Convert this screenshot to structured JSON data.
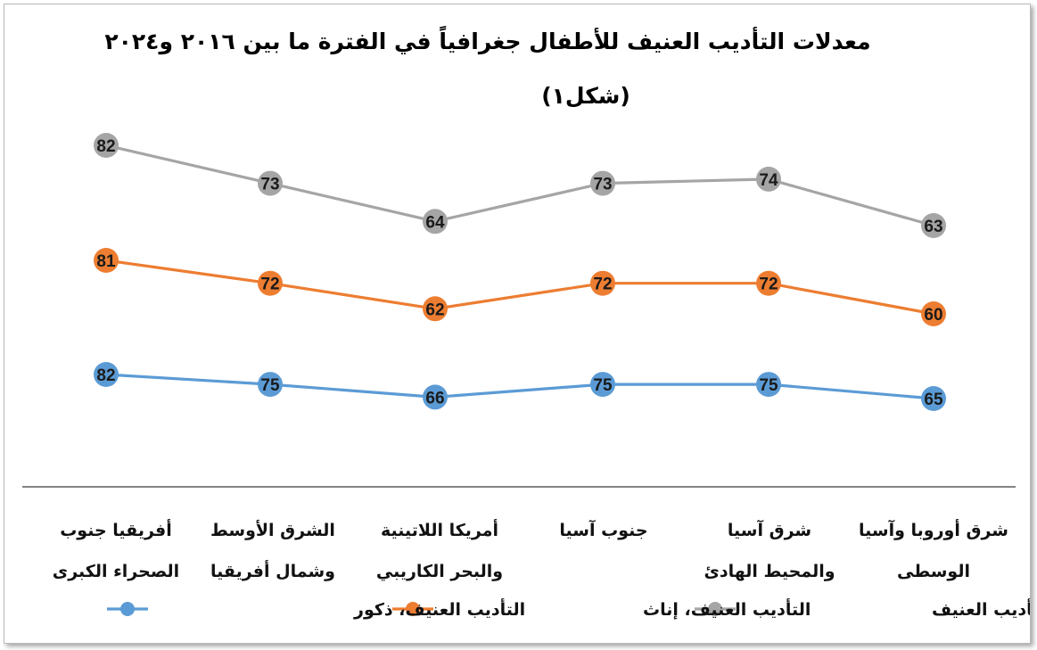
{
  "chart_data": {
    "type": "line",
    "title": "معدلات التأديب العنيف للأطفال جغرافياً في الفترة ما بين ٢٠١٦ و٢٠٢٤",
    "subtitle": "(شكل١)",
    "xlabel": "",
    "ylabel": "",
    "grid": false,
    "legend_position": "bottom",
    "categories": [
      [
        "أفريقيا جنوب",
        "الصحراء الكبرى"
      ],
      [
        "الشرق الأوسط",
        "وشمال أفريقيا"
      ],
      [
        "أمريكا اللاتينية",
        "والبحر الكاريبي"
      ],
      [
        "جنوب آسيا"
      ],
      [
        "شرق آسيا",
        "والمحيط الهادئ"
      ],
      [
        "شرق أوروبا وآسيا",
        "الوسطى"
      ]
    ],
    "ylim": [
      55,
      90
    ],
    "series": [
      {
        "name": "معدل التأديب العنيف",
        "color": "#a5a5a5",
        "values": [
          82,
          73,
          64,
          73,
          74,
          63
        ]
      },
      {
        "name": "التأديب العنيف، إناث",
        "color": "#ed7d31",
        "values": [
          81,
          72,
          62,
          72,
          72,
          60
        ]
      },
      {
        "name": "التأديب العنيف، ذكور",
        "color": "#5b9bd5",
        "values": [
          82,
          75,
          66,
          75,
          75,
          65
        ]
      }
    ]
  }
}
